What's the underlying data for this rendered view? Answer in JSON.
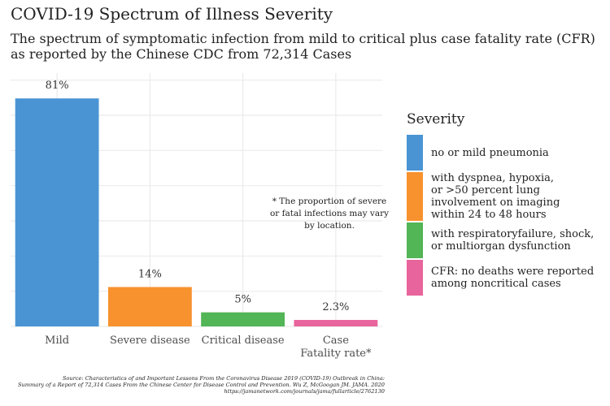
{
  "colors": {
    "bar_mild": "#4a94d4",
    "bar_severe": "#f8922e",
    "bar_critical": "#52b556",
    "bar_cfr": "#e8649c",
    "grid": "#ebebeb"
  },
  "chart_data": {
    "type": "bar",
    "title": "COVID-19 Spectrum of Illness Severity",
    "subtitle": "The spectrum of symptomatic infection from mild to critical plus case fatality rate (CFR) as reported by the Chinese CDC from 72,314 Cases",
    "categories": [
      "Mild",
      "Severe disease",
      "Critical disease",
      "Case\nFatality rate*"
    ],
    "values": [
      81,
      14,
      5,
      2.3
    ],
    "value_labels": [
      "81%",
      "14%",
      "5%",
      "2.3%"
    ],
    "xlabel": "",
    "ylabel": "",
    "ylim": [
      0,
      90
    ],
    "y_tick_labels_shown": false,
    "grid": true,
    "legend": {
      "title": "Severity",
      "placement": "right",
      "items": [
        {
          "label": "no or mild pneumonia",
          "color": "#4a94d4"
        },
        {
          "label": "with dyspnea, hypoxia,\nor >50 percent lung\ninvolvement on imaging\nwithin 24 to 48 hours",
          "color": "#f8922e"
        },
        {
          "label": "with respiratoryfailure, shock,\nor multiorgan dysfunction",
          "color": "#52b556"
        },
        {
          "label": "CFR: no deaths were reported\namong noncritical cases",
          "color": "#e8649c"
        }
      ]
    },
    "annotations": [
      "* The proportion of severe or fatal infections may vary by location."
    ],
    "caption": [
      "Source: Characteristics of and Important Lessons From the Coronavirus Disease 2019 (COVID-19) Outbreak in China:",
      "Summary of a Report of 72,314 Cases From the Chinese Center for Disease Control and Prevention. Wu Z, McGoogan JM. JAMA. 2020",
      "https://jamanetwork.com/journals/jama/fullarticle/2762130"
    ]
  }
}
